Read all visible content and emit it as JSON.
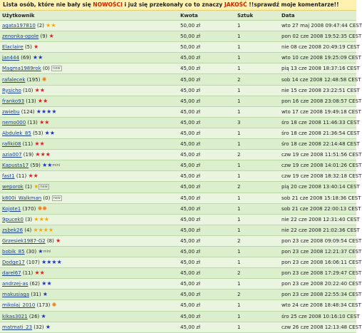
{
  "banner": {
    "part1": "Lista osób, które nie bały się ",
    "part2": "NOWOŚCI",
    "part3": " i już się przekonały co to znaczy ",
    "part4": "JAKOŚĆ",
    "part5": " !!sprawdź moje komentarze!!"
  },
  "table": {
    "headers": {
      "user": "Użytkownik",
      "amount": "Kwota",
      "qty": "Sztuk",
      "date": "Data"
    },
    "rows": [
      {
        "user": "agata197810",
        "score": "(2)",
        "icons": [
          "star-yellow",
          "star-yellow"
        ],
        "amount": "50,00 zł",
        "qty": "1",
        "date": "wto 27 maj 2008 09:47:44 CEST"
      },
      {
        "user": "zenonka-opole",
        "score": "(9)",
        "icons": [
          "star-red"
        ],
        "amount": "50,00 zł",
        "qty": "1",
        "date": "pon 02 cze 2008 19:52:35 CEST"
      },
      {
        "user": "Elaclaire",
        "score": "(5)",
        "icons": [
          "star-red"
        ],
        "amount": "50,00 zł",
        "qty": "1",
        "date": "nie 08 cze 2008 20:49:19 CEST"
      },
      {
        "user": "jan444",
        "score": "(69)",
        "icons": [
          "star-blue",
          "star-blue"
        ],
        "amount": "45,00 zł",
        "qty": "1",
        "date": "wto 10 cze 2008 19:25:09 CEST"
      },
      {
        "user": "Magma1989rok",
        "score": "(0)",
        "icons": [
          "badge-new"
        ],
        "amount": "45,00 zł",
        "qty": "1",
        "date": "pią 13 cze 2008 18:37:16 CEST"
      },
      {
        "user": "rafalecek",
        "score": "(195)",
        "icons": [
          "flower-orange"
        ],
        "amount": "45,00 zł",
        "qty": "2",
        "date": "sob 14 cze 2008 12:48:58 CEST"
      },
      {
        "user": "Rysicho",
        "score": "(10)",
        "icons": [
          "star-red",
          "star-red"
        ],
        "amount": "45,00 zł",
        "qty": "1",
        "date": "nie 15 cze 2008 23:22:51 CEST"
      },
      {
        "user": "franko93",
        "score": "(13)",
        "icons": [
          "star-red",
          "star-red"
        ],
        "amount": "45,00 zł",
        "qty": "1",
        "date": "pon 16 cze 2008 23:08:57 CEST"
      },
      {
        "user": "zwiebu",
        "score": "(124)",
        "icons": [
          "star-blue",
          "star-blue",
          "star-blue",
          "star-blue"
        ],
        "amount": "45,00 zł",
        "qty": "1",
        "date": "wto 17 cze 2008 19:49:18 CEST"
      },
      {
        "user": "nemo000",
        "score": "(13)",
        "icons": [
          "star-red",
          "star-red"
        ],
        "amount": "45,00 zł",
        "qty": "3",
        "date": "śro 18 cze 2008 11:46:33 CEST"
      },
      {
        "user": "Abdulek_85",
        "score": "(53)",
        "icons": [
          "star-blue",
          "star-blue"
        ],
        "amount": "45,00 zł",
        "qty": "1",
        "date": "śro 18 cze 2008 21:36:54 CEST"
      },
      {
        "user": "rafiki08",
        "score": "(11)",
        "icons": [
          "star-red",
          "star-red"
        ],
        "amount": "45,00 zł",
        "qty": "1",
        "date": "śro 18 cze 2008 22:14:48 CEST"
      },
      {
        "user": "azia007",
        "score": "(19)",
        "icons": [
          "star-red",
          "star-red",
          "star-red"
        ],
        "amount": "45,00 zł",
        "qty": "2",
        "date": "czw 19 cze 2008 11:51:56 CEST"
      },
      {
        "user": "Kapusta17",
        "score": "(59)",
        "icons": [
          "star-blue",
          "star-blue",
          "badge-mini"
        ],
        "amount": "45,00 zł",
        "qty": "1",
        "date": "czw 19 cze 2008 14:01:26 CEST"
      },
      {
        "user": "fast1",
        "score": "(11)",
        "icons": [
          "star-red",
          "star-red"
        ],
        "amount": "45,00 zł",
        "qty": "1",
        "date": "czw 19 cze 2008 18:32:18 CEST"
      },
      {
        "user": "weporok",
        "score": "(1)",
        "icons": [
          "star-yellow",
          "badge-new"
        ],
        "amount": "45,00 zł",
        "qty": "2",
        "date": "pią 20 cze 2008 13:40:14 CEST"
      },
      {
        "user": "k800i_Walkman",
        "score": "(0)",
        "icons": [
          "badge-new"
        ],
        "amount": "45,00 zł",
        "qty": "1",
        "date": "sob 21 cze 2008 15:18:36 CEST"
      },
      {
        "user": "Kojote1",
        "score": "(370)",
        "icons": [
          "flower-orange",
          "flower-orange"
        ],
        "amount": "45,00 zł",
        "qty": "1",
        "date": "sob 21 cze 2008 22:00:13 CEST"
      },
      {
        "user": "9pucek0",
        "score": "(3)",
        "icons": [
          "star-yellow",
          "star-yellow",
          "star-yellow"
        ],
        "amount": "45,00 zł",
        "qty": "1",
        "date": "nie 22 cze 2008 12:31:40 CEST"
      },
      {
        "user": "zsbek26",
        "score": "(4)",
        "icons": [
          "star-yellow",
          "star-yellow",
          "star-yellow",
          "star-yellow"
        ],
        "amount": "45,00 zł",
        "qty": "1",
        "date": "nie 22 cze 2008 21:02:36 CEST"
      },
      {
        "user": "Grzesiek1987-G2",
        "score": "(8)",
        "icons": [
          "star-red"
        ],
        "amount": "45,00 zł",
        "qty": "2",
        "date": "pon 23 cze 2008 09:09:54 CEST"
      },
      {
        "user": "bobik_85",
        "score": "(30)",
        "icons": [
          "star-blue",
          "badge-mini"
        ],
        "amount": "45,00 zł",
        "qty": "1",
        "date": "pon 23 cze 2008 12:21:37 CEST"
      },
      {
        "user": "Dodge17",
        "score": "(107)",
        "icons": [
          "star-blue",
          "star-blue",
          "star-blue",
          "star-blue"
        ],
        "amount": "45,00 zł",
        "qty": "1",
        "date": "pon 23 cze 2008 16:06:11 CEST"
      },
      {
        "user": "darel67",
        "score": "(11)",
        "icons": [
          "star-red",
          "star-red"
        ],
        "amount": "45,00 zł",
        "qty": "2",
        "date": "pon 23 cze 2008 17:29:47 CEST"
      },
      {
        "user": "andrzej-as",
        "score": "(62)",
        "icons": [
          "star-blue",
          "star-blue"
        ],
        "amount": "45,00 zł",
        "qty": "1",
        "date": "pon 23 cze 2008 20:22:40 CEST"
      },
      {
        "user": "makusiaga",
        "score": "(31)",
        "icons": [
          "star-blue"
        ],
        "amount": "45,00 zł",
        "qty": "2",
        "date": "pon 23 cze 2008 22:55:34 CEST"
      },
      {
        "user": "mikolaj_2010",
        "score": "(173)",
        "icons": [
          "flower-orange"
        ],
        "amount": "45,00 zł",
        "qty": "1",
        "date": "wto 24 cze 2008 18:48:34 CEST"
      },
      {
        "user": "kikas3021",
        "score": "(26)",
        "icons": [
          "star-blue"
        ],
        "amount": "45,00 zł",
        "qty": "1",
        "date": "śro 25 cze 2008 10:16:10 CEST"
      },
      {
        "user": "matmati_23",
        "score": "(32)",
        "icons": [
          "star-blue"
        ],
        "amount": "45,00 zł",
        "qty": "1",
        "date": "czw 26 cze 2008 12:13:48 CEST"
      }
    ]
  },
  "icon_glyphs": {
    "star-yellow": "★",
    "star-red": "★",
    "star-blue": "★",
    "flower-orange": "✺",
    "badge-new": "new",
    "badge-mini": "mini"
  },
  "colors": {
    "star-yellow": "#f2a900",
    "star-red": "#e01b1b",
    "star-blue": "#1c2fc9",
    "flower-orange": "#f07a10",
    "link": "#1a3f8c"
  }
}
